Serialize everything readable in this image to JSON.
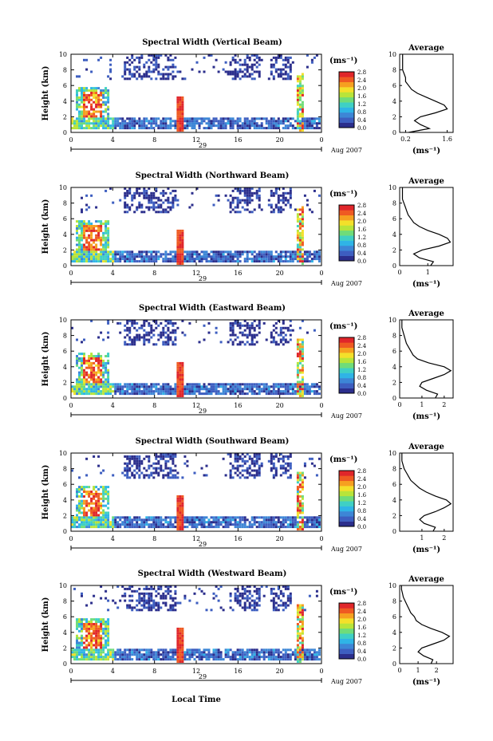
{
  "figure": {
    "xlabel": "Local Time",
    "date_label": "Aug 2007",
    "colorbar_unit": "(ms⁻¹)",
    "colorbar_ticks": [
      "0.0",
      "0.4",
      "0.8",
      "1.2",
      "1.6",
      "2.0",
      "2.4",
      "2.8"
    ],
    "colorbar_colors": [
      "#2b2e8c",
      "#3d5ec0",
      "#3d86d6",
      "#2fb4e6",
      "#3fd0c4",
      "#6fdc7a",
      "#b8e43a",
      "#f4e02a",
      "#f6a020",
      "#ef5a22",
      "#e0262a"
    ],
    "x_ticks": [
      "0",
      "4",
      "8",
      "12",
      "16",
      "20",
      "0"
    ],
    "day_labels": [
      "29",
      "29",
      "29",
      "29",
      "29"
    ],
    "profile_xlabel": "(ms⁻¹)"
  },
  "chart_data": [
    {
      "type": "heatmap",
      "title": "Spectral Width (Vertical Beam)",
      "ylabel": "Height (km)",
      "xlim": [
        0,
        24
      ],
      "ylim": [
        0,
        10
      ],
      "yticks": [
        "0",
        "2",
        "4",
        "6",
        "8",
        "10"
      ],
      "clim": [
        0.0,
        2.8
      ],
      "profile": {
        "title": "Average",
        "xticks": [
          "0.2",
          "1.6"
        ],
        "xlim": [
          0.0,
          1.8
        ],
        "heights": [
          0,
          0.5,
          1,
          1.5,
          2,
          2.5,
          3,
          3.5,
          4,
          4.5,
          5,
          5.5,
          6,
          6.5,
          7,
          7.5,
          8,
          8.5,
          9,
          9.5,
          10
        ],
        "values": [
          0.3,
          1.0,
          0.7,
          0.5,
          0.7,
          1.2,
          1.6,
          1.5,
          1.2,
          0.9,
          0.6,
          0.4,
          0.3,
          0.2,
          0.2,
          0.15,
          0.1,
          0.1,
          0.1,
          0.1,
          0.1
        ]
      }
    },
    {
      "type": "heatmap",
      "title": "Spectral Width (Northward Beam)",
      "ylabel": "Height (km)",
      "xlim": [
        0,
        24
      ],
      "ylim": [
        0,
        10
      ],
      "yticks": [
        "0",
        "2",
        "4",
        "6",
        "8",
        "10"
      ],
      "clim": [
        0.0,
        2.8
      ],
      "profile": {
        "title": "Average",
        "xticks": [
          "0",
          "1"
        ],
        "xlim": [
          0.0,
          1.9
        ],
        "heights": [
          0,
          0.5,
          1,
          1.5,
          2,
          2.5,
          3,
          3.5,
          4,
          4.5,
          5,
          5.5,
          6,
          6.5,
          7,
          7.5,
          8,
          8.5,
          9,
          9.5,
          10
        ],
        "values": [
          1.1,
          1.2,
          0.7,
          0.5,
          0.8,
          1.4,
          1.8,
          1.7,
          1.4,
          1.0,
          0.7,
          0.5,
          0.4,
          0.3,
          0.25,
          0.2,
          0.15,
          0.1,
          0.1,
          0.1,
          0.1
        ]
      }
    },
    {
      "type": "heatmap",
      "title": "Spectral Width (Eastward Beam)",
      "ylabel": "Height (km)",
      "xlim": [
        0,
        24
      ],
      "ylim": [
        0,
        10
      ],
      "yticks": [
        "0",
        "2",
        "4",
        "6",
        "8",
        "10"
      ],
      "clim": [
        0.0,
        2.8
      ],
      "profile": {
        "title": "Average",
        "xticks": [
          "0",
          "1",
          "2"
        ],
        "xlim": [
          0.0,
          2.4
        ],
        "heights": [
          0,
          0.5,
          1,
          1.5,
          2,
          2.5,
          3,
          3.5,
          4,
          4.5,
          5,
          5.5,
          6,
          6.5,
          7,
          7.5,
          8,
          8.5,
          9,
          9.5,
          10
        ],
        "values": [
          1.6,
          1.7,
          1.2,
          0.9,
          1.0,
          1.5,
          2.0,
          2.3,
          2.0,
          1.3,
          0.8,
          0.6,
          0.5,
          0.4,
          0.3,
          0.25,
          0.2,
          0.15,
          0.1,
          0.1,
          0.1
        ]
      }
    },
    {
      "type": "heatmap",
      "title": "Spectral Width (Southward Beam)",
      "ylabel": "Height (km)",
      "xlim": [
        0,
        24
      ],
      "ylim": [
        0,
        10
      ],
      "yticks": [
        "0",
        "2",
        "4",
        "6",
        "8",
        "10"
      ],
      "clim": [
        0.0,
        2.8
      ],
      "profile": {
        "title": "Average",
        "xticks": [
          "1",
          "2"
        ],
        "xlim": [
          0.0,
          2.4
        ],
        "heights": [
          0,
          0.5,
          1,
          1.5,
          2,
          2.5,
          3,
          3.5,
          4,
          4.5,
          5,
          5.5,
          6,
          6.5,
          7,
          7.5,
          8,
          8.5,
          9,
          9.5,
          10
        ],
        "values": [
          1.5,
          1.6,
          1.1,
          0.9,
          1.1,
          1.6,
          2.0,
          2.3,
          2.1,
          1.6,
          1.2,
          0.9,
          0.7,
          0.5,
          0.4,
          0.3,
          0.2,
          0.15,
          0.1,
          0.1,
          0.1
        ]
      }
    },
    {
      "type": "heatmap",
      "title": "Spectral Width (Westward Beam)",
      "ylabel": "Height (km)",
      "xlim": [
        0,
        24
      ],
      "ylim": [
        0,
        10
      ],
      "yticks": [
        "0",
        "2",
        "4",
        "6",
        "8",
        "10"
      ],
      "clim": [
        0.0,
        2.8
      ],
      "profile": {
        "title": "Average",
        "xticks": [
          "0",
          "1",
          "2"
        ],
        "xlim": [
          0.0,
          2.9
        ],
        "heights": [
          0,
          0.5,
          1,
          1.5,
          2,
          2.5,
          3,
          3.5,
          4,
          4.5,
          5,
          5.5,
          6,
          6.5,
          7,
          7.5,
          8,
          8.5,
          9,
          9.5,
          10
        ],
        "values": [
          1.7,
          1.8,
          1.3,
          1.0,
          1.2,
          1.8,
          2.4,
          2.7,
          2.3,
          1.7,
          1.2,
          0.9,
          0.8,
          0.6,
          0.5,
          0.4,
          0.3,
          0.2,
          0.15,
          0.1,
          0.1
        ]
      }
    }
  ]
}
